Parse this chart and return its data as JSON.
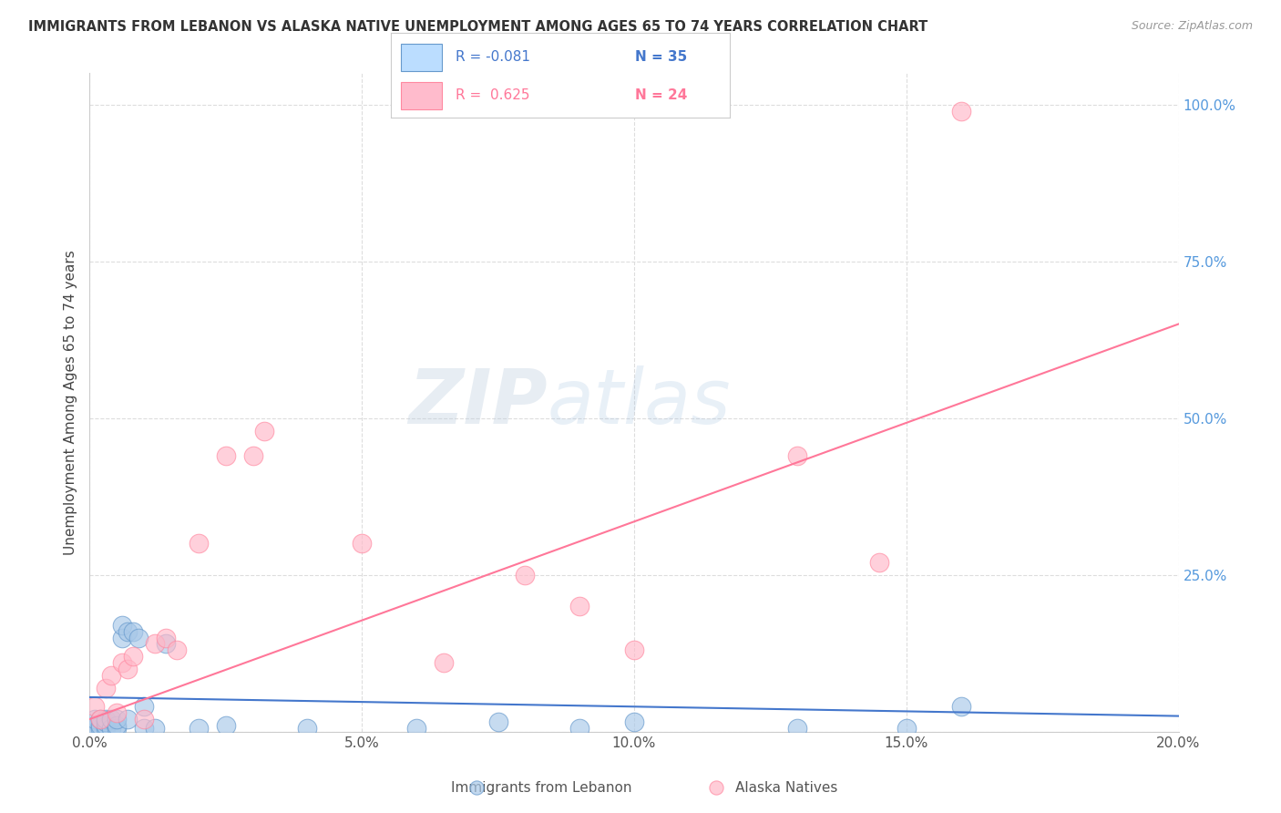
{
  "title": "IMMIGRANTS FROM LEBANON VS ALASKA NATIVE UNEMPLOYMENT AMONG AGES 65 TO 74 YEARS CORRELATION CHART",
  "source": "Source: ZipAtlas.com",
  "ylabel": "Unemployment Among Ages 65 to 74 years",
  "xlim": [
    0,
    0.2
  ],
  "ylim": [
    0,
    1.05
  ],
  "xtick_labels": [
    "0.0%",
    "5.0%",
    "10.0%",
    "15.0%",
    "20.0%"
  ],
  "xtick_vals": [
    0.0,
    0.05,
    0.1,
    0.15,
    0.2
  ],
  "ytick_labels_right": [
    "100.0%",
    "75.0%",
    "50.0%",
    "25.0%"
  ],
  "ytick_vals_right": [
    1.0,
    0.75,
    0.5,
    0.25
  ],
  "legend_label_blue": "Immigrants from Lebanon",
  "legend_label_pink": "Alaska Natives",
  "legend_R_blue": "R = -0.081",
  "legend_N_blue": "N = 35",
  "legend_R_pink": "R =  0.625",
  "legend_N_pink": "N = 24",
  "watermark_zip": "ZIP",
  "watermark_atlas": "atlas",
  "blue_marker_color": "#A8C8E8",
  "blue_edge_color": "#6699CC",
  "pink_marker_color": "#FFB8C8",
  "pink_edge_color": "#FF88A0",
  "trend_blue_color": "#4477CC",
  "trend_pink_color": "#FF7799",
  "legend_blue_fill": "#BBDDFF",
  "legend_pink_fill": "#FFBBCC",
  "right_axis_color": "#5599DD",
  "grid_color": "#DDDDDD",
  "blue_scatter_x": [
    0.001,
    0.001,
    0.001,
    0.002,
    0.002,
    0.002,
    0.003,
    0.003,
    0.003,
    0.003,
    0.004,
    0.004,
    0.005,
    0.005,
    0.005,
    0.006,
    0.006,
    0.007,
    0.007,
    0.008,
    0.009,
    0.01,
    0.01,
    0.012,
    0.014,
    0.02,
    0.025,
    0.04,
    0.06,
    0.075,
    0.09,
    0.1,
    0.13,
    0.15,
    0.16
  ],
  "blue_scatter_y": [
    0.005,
    0.01,
    0.02,
    0.005,
    0.01,
    0.02,
    0.005,
    0.01,
    0.015,
    0.02,
    0.005,
    0.02,
    0.005,
    0.01,
    0.02,
    0.15,
    0.17,
    0.16,
    0.02,
    0.16,
    0.15,
    0.005,
    0.04,
    0.005,
    0.14,
    0.005,
    0.01,
    0.005,
    0.005,
    0.015,
    0.005,
    0.015,
    0.005,
    0.005,
    0.04
  ],
  "pink_scatter_x": [
    0.001,
    0.002,
    0.003,
    0.004,
    0.005,
    0.006,
    0.007,
    0.008,
    0.01,
    0.012,
    0.014,
    0.016,
    0.02,
    0.025,
    0.03,
    0.032,
    0.05,
    0.065,
    0.08,
    0.09,
    0.1,
    0.13,
    0.145,
    0.16
  ],
  "pink_scatter_y": [
    0.04,
    0.02,
    0.07,
    0.09,
    0.03,
    0.11,
    0.1,
    0.12,
    0.02,
    0.14,
    0.15,
    0.13,
    0.3,
    0.44,
    0.44,
    0.48,
    0.3,
    0.11,
    0.25,
    0.2,
    0.13,
    0.44,
    0.27,
    0.99
  ],
  "blue_trend_x0": 0.0,
  "blue_trend_x1": 0.2,
  "blue_trend_y0": 0.055,
  "blue_trend_y1": 0.025,
  "pink_trend_x0": 0.0,
  "pink_trend_x1": 0.2,
  "pink_trend_y0": 0.02,
  "pink_trend_y1": 0.65
}
